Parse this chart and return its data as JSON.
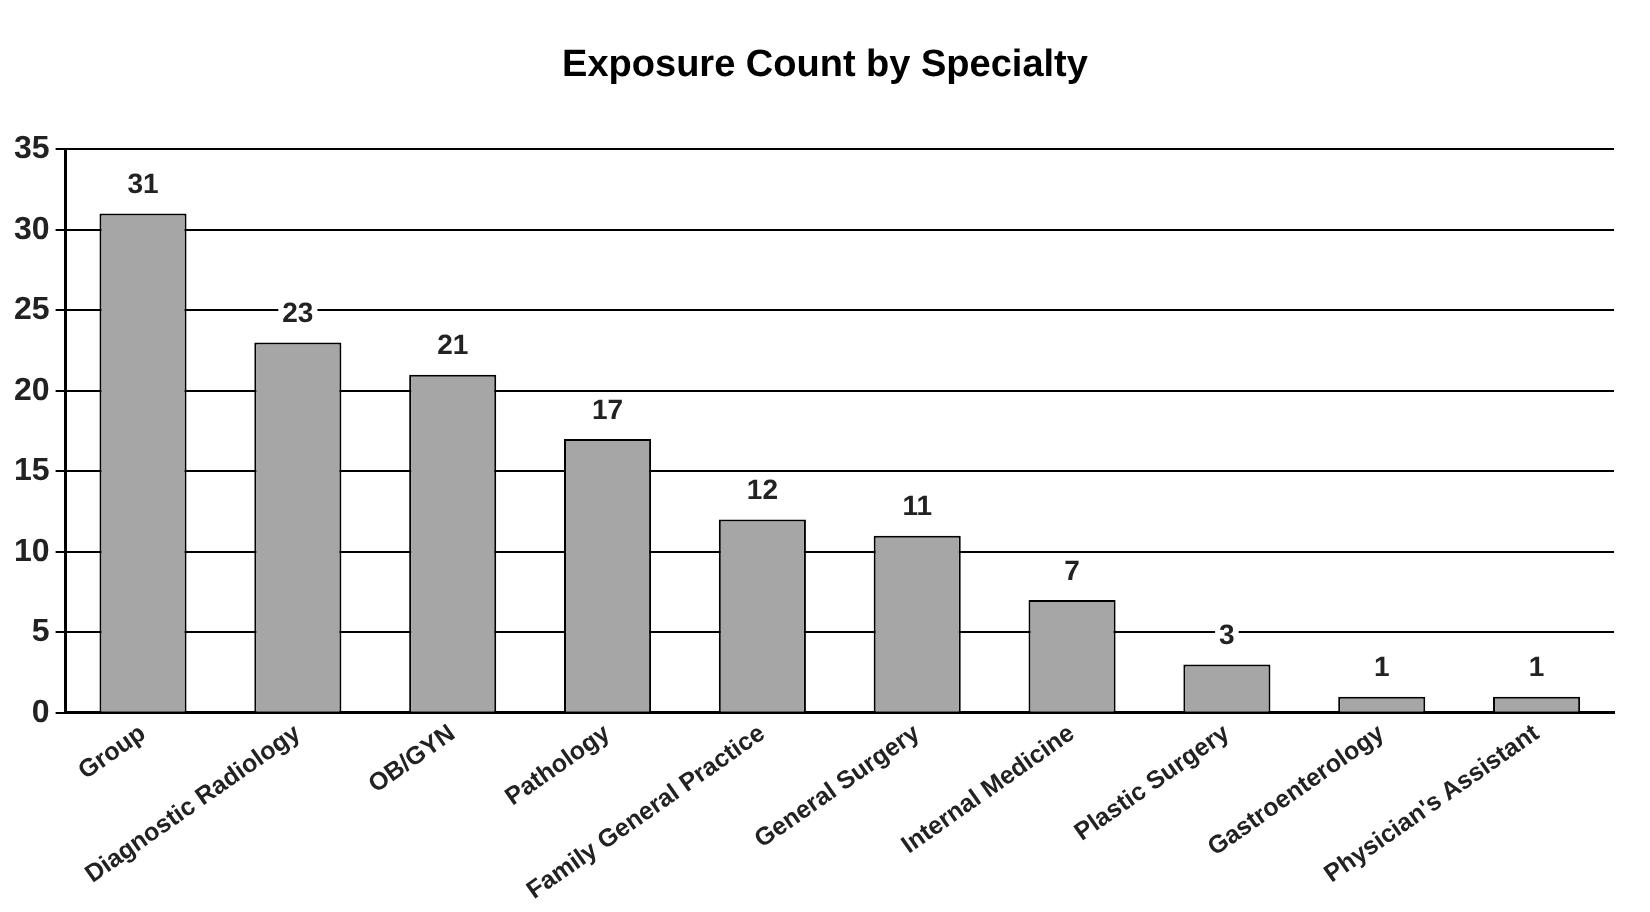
{
  "chart_data": {
    "type": "bar",
    "title": "Exposure Count by Specialty",
    "categories": [
      "Group",
      "Diagnostic Radiology",
      "OB/GYN",
      "Pathology",
      "Family General Practice",
      "General Surgery",
      "Internal Medicine",
      "Plastic Surgery",
      "Gastroenterology",
      "Physician's Assistant"
    ],
    "values": [
      31,
      23,
      21,
      17,
      12,
      11,
      7,
      3,
      1,
      1
    ],
    "color": "#a6a6a6",
    "ylim": [
      0,
      35
    ],
    "yticks": [
      0,
      5,
      10,
      15,
      20,
      25,
      30,
      35
    ],
    "grid": "y",
    "data_labels": true
  }
}
